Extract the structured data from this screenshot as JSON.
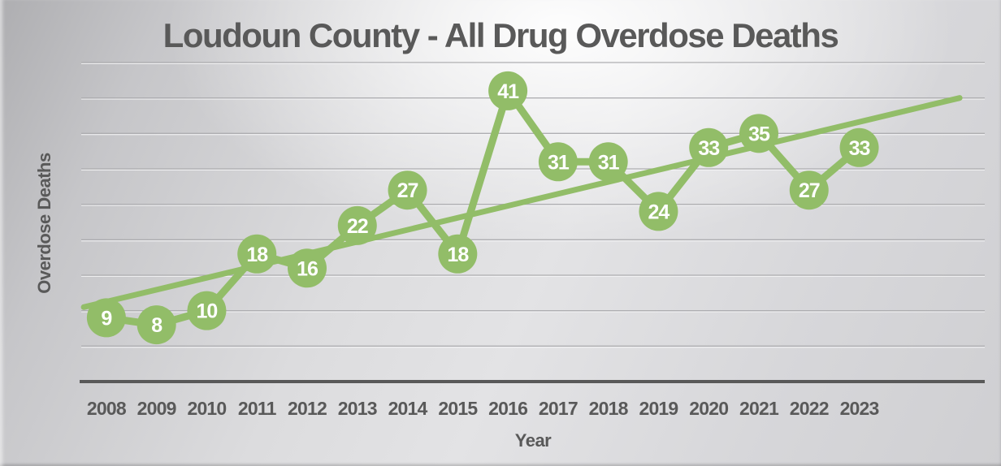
{
  "chart_data": {
    "type": "line",
    "title": "Loudoun County - All Drug Overdose Deaths",
    "xlabel": "Year",
    "ylabel": "Overdose Deaths",
    "categories": [
      "2008",
      "2009",
      "2010",
      "2011",
      "2012",
      "2013",
      "2014",
      "2015",
      "2016",
      "2017",
      "2018",
      "2019",
      "2020",
      "2021",
      "2022",
      "2023"
    ],
    "values": [
      9,
      8,
      10,
      18,
      16,
      22,
      27,
      18,
      41,
      31,
      31,
      24,
      33,
      35,
      27,
      33
    ],
    "ylim": [
      0,
      45
    ],
    "grid_step": 5,
    "grid_on": true,
    "legend": "none",
    "x_slots": 18,
    "trendline": {
      "style": "linear",
      "start_year": 2007.55,
      "start_value": 10.5,
      "end_year": 2025.0,
      "end_value": 40.0
    },
    "marker_radius": 24,
    "colors": {
      "series_green": "#92BD68",
      "marker_label_text": "#FFFFFF",
      "axis_text": "#595959",
      "gridline": "#ababae",
      "gridline_highlight": "#f6f6f7",
      "axis_line": "#595959"
    }
  }
}
